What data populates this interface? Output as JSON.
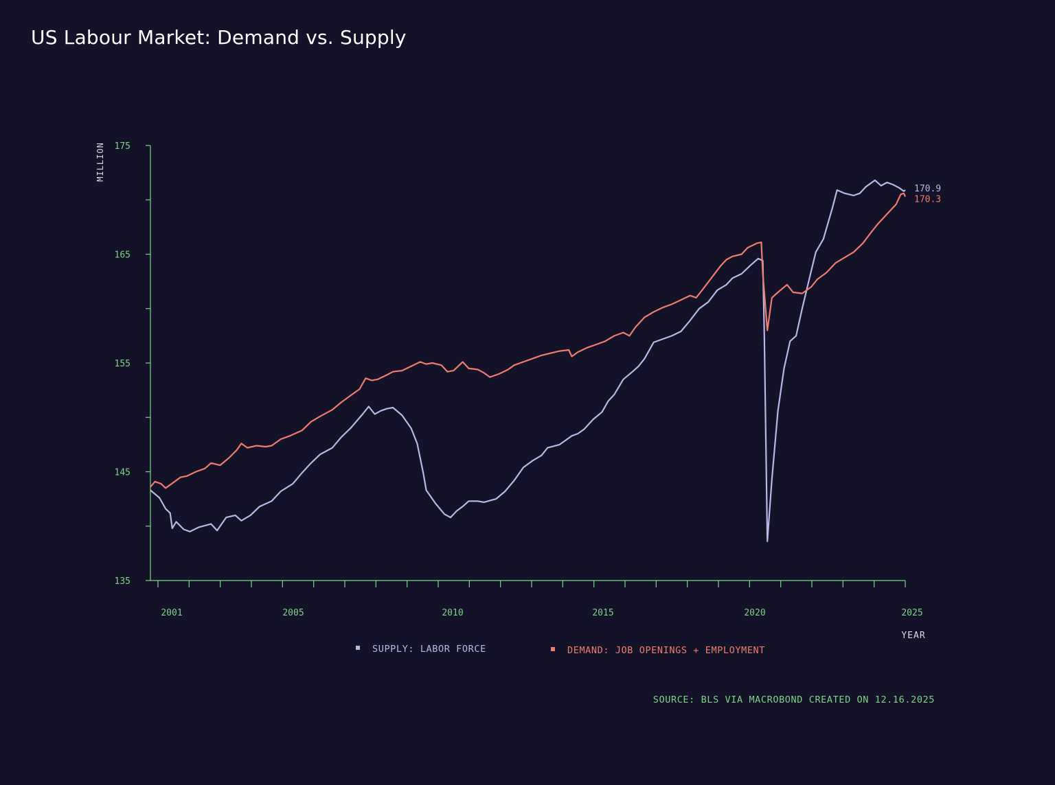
{
  "title": "US Labour Market: Demand vs. Supply",
  "source": "SOURCE: BLS VIA MACROBOND CREATED ON 12.16.2025",
  "colors": {
    "background": "#131228",
    "axis": "#7fd38a",
    "supply": "#b8b7e6",
    "demand": "#ee7d6e",
    "title": "#ffffff"
  },
  "chart_data": {
    "type": "line",
    "title": "US Labour Market: Demand vs. Supply",
    "ylabel": "MILLION",
    "xlabel": "YEAR",
    "ylim": [
      135,
      175
    ],
    "xlim": [
      2000.0,
      2024.9
    ],
    "y_ticks_labeled": [
      135,
      145,
      155,
      165,
      175
    ],
    "x_ticks_labeled": [
      "2001",
      "2005",
      "2010",
      "2015",
      "2020",
      "2025"
    ],
    "grid": false,
    "legend_position": "bottom-center",
    "series": [
      {
        "name": "SUPPLY: LABOR FORCE",
        "color": "#b8b7e6",
        "end_label": "170.9",
        "points": [
          [
            2000.0,
            143.3
          ],
          [
            2000.3,
            142.6
          ],
          [
            2000.5,
            141.6
          ],
          [
            2000.65,
            141.2
          ],
          [
            2000.72,
            139.8
          ],
          [
            2000.85,
            140.4
          ],
          [
            2001.1,
            139.7
          ],
          [
            2001.3,
            139.5
          ],
          [
            2001.6,
            139.9
          ],
          [
            2002.0,
            140.2
          ],
          [
            2002.2,
            139.6
          ],
          [
            2002.5,
            140.8
          ],
          [
            2002.8,
            141.0
          ],
          [
            2003.0,
            140.5
          ],
          [
            2003.3,
            141.0
          ],
          [
            2003.6,
            141.8
          ],
          [
            2004.0,
            142.3
          ],
          [
            2004.3,
            143.2
          ],
          [
            2004.7,
            143.9
          ],
          [
            2005.0,
            144.9
          ],
          [
            2005.3,
            145.8
          ],
          [
            2005.6,
            146.6
          ],
          [
            2006.0,
            147.2
          ],
          [
            2006.3,
            148.2
          ],
          [
            2006.6,
            149.0
          ],
          [
            2007.0,
            150.3
          ],
          [
            2007.2,
            151.0
          ],
          [
            2007.4,
            150.3
          ],
          [
            2007.6,
            150.6
          ],
          [
            2007.8,
            150.8
          ],
          [
            2008.0,
            150.9
          ],
          [
            2008.3,
            150.2
          ],
          [
            2008.6,
            149.0
          ],
          [
            2008.8,
            147.6
          ],
          [
            2009.0,
            144.9
          ],
          [
            2009.1,
            143.3
          ],
          [
            2009.4,
            142.1
          ],
          [
            2009.7,
            141.1
          ],
          [
            2009.9,
            140.8
          ],
          [
            2010.1,
            141.4
          ],
          [
            2010.3,
            141.8
          ],
          [
            2010.5,
            142.3
          ],
          [
            2010.8,
            142.3
          ],
          [
            2011.0,
            142.2
          ],
          [
            2011.4,
            142.5
          ],
          [
            2011.7,
            143.2
          ],
          [
            2012.0,
            144.2
          ],
          [
            2012.3,
            145.4
          ],
          [
            2012.6,
            146.0
          ],
          [
            2012.9,
            146.5
          ],
          [
            2013.1,
            147.2
          ],
          [
            2013.5,
            147.5
          ],
          [
            2013.9,
            148.3
          ],
          [
            2014.1,
            148.5
          ],
          [
            2014.3,
            148.9
          ],
          [
            2014.6,
            149.8
          ],
          [
            2014.9,
            150.5
          ],
          [
            2015.1,
            151.5
          ],
          [
            2015.3,
            152.1
          ],
          [
            2015.6,
            153.5
          ],
          [
            2015.9,
            154.2
          ],
          [
            2016.1,
            154.7
          ],
          [
            2016.3,
            155.4
          ],
          [
            2016.6,
            156.9
          ],
          [
            2016.9,
            157.2
          ],
          [
            2017.2,
            157.5
          ],
          [
            2017.5,
            157.9
          ],
          [
            2017.8,
            158.9
          ],
          [
            2018.1,
            160.0
          ],
          [
            2018.4,
            160.6
          ],
          [
            2018.7,
            161.7
          ],
          [
            2019.0,
            162.2
          ],
          [
            2019.2,
            162.8
          ],
          [
            2019.5,
            163.2
          ],
          [
            2019.8,
            164.0
          ],
          [
            2020.05,
            164.6
          ],
          [
            2020.2,
            164.4
          ],
          [
            2020.25,
            157.5
          ],
          [
            2020.35,
            138.6
          ],
          [
            2020.5,
            144.3
          ],
          [
            2020.7,
            150.6
          ],
          [
            2020.9,
            154.5
          ],
          [
            2021.1,
            157.0
          ],
          [
            2021.3,
            157.5
          ],
          [
            2021.5,
            160.0
          ],
          [
            2021.8,
            163.5
          ],
          [
            2021.95,
            165.2
          ],
          [
            2022.2,
            166.4
          ],
          [
            2022.5,
            169.3
          ],
          [
            2022.65,
            170.9
          ],
          [
            2022.9,
            170.6
          ],
          [
            2023.2,
            170.4
          ],
          [
            2023.4,
            170.6
          ],
          [
            2023.6,
            171.2
          ],
          [
            2023.9,
            171.8
          ],
          [
            2024.1,
            171.3
          ],
          [
            2024.3,
            171.6
          ],
          [
            2024.5,
            171.4
          ],
          [
            2024.7,
            171.1
          ],
          [
            2024.85,
            170.8
          ],
          [
            2024.9,
            170.9
          ]
        ]
      },
      {
        "name": "DEMAND: JOB OPENINGS + EMPLOYMENT",
        "color": "#ee7d6e",
        "end_label": "170.3",
        "points": [
          [
            2000.0,
            143.6
          ],
          [
            2000.15,
            144.1
          ],
          [
            2000.35,
            143.9
          ],
          [
            2000.5,
            143.5
          ],
          [
            2000.8,
            144.1
          ],
          [
            2001.0,
            144.5
          ],
          [
            2001.2,
            144.6
          ],
          [
            2001.5,
            145.0
          ],
          [
            2001.8,
            145.3
          ],
          [
            2002.0,
            145.8
          ],
          [
            2002.3,
            145.6
          ],
          [
            2002.6,
            146.3
          ],
          [
            2002.85,
            147.0
          ],
          [
            2003.0,
            147.6
          ],
          [
            2003.2,
            147.2
          ],
          [
            2003.5,
            147.4
          ],
          [
            2003.8,
            147.3
          ],
          [
            2004.0,
            147.4
          ],
          [
            2004.3,
            148.0
          ],
          [
            2004.6,
            148.3
          ],
          [
            2005.0,
            148.8
          ],
          [
            2005.3,
            149.6
          ],
          [
            2005.6,
            150.1
          ],
          [
            2006.0,
            150.7
          ],
          [
            2006.3,
            151.4
          ],
          [
            2006.6,
            152.0
          ],
          [
            2006.9,
            152.6
          ],
          [
            2007.1,
            153.6
          ],
          [
            2007.3,
            153.4
          ],
          [
            2007.5,
            153.5
          ],
          [
            2007.8,
            153.9
          ],
          [
            2008.0,
            154.2
          ],
          [
            2008.3,
            154.3
          ],
          [
            2008.6,
            154.7
          ],
          [
            2008.9,
            155.1
          ],
          [
            2009.1,
            154.9
          ],
          [
            2009.3,
            155.0
          ],
          [
            2009.6,
            154.8
          ],
          [
            2009.8,
            154.2
          ],
          [
            2010.0,
            154.3
          ],
          [
            2010.3,
            155.1
          ],
          [
            2010.5,
            154.5
          ],
          [
            2010.8,
            154.4
          ],
          [
            2011.0,
            154.1
          ],
          [
            2011.2,
            153.7
          ],
          [
            2011.5,
            154.0
          ],
          [
            2011.8,
            154.4
          ],
          [
            2012.0,
            154.8
          ],
          [
            2012.3,
            155.1
          ],
          [
            2012.6,
            155.4
          ],
          [
            2012.9,
            155.7
          ],
          [
            2013.2,
            155.9
          ],
          [
            2013.5,
            156.1
          ],
          [
            2013.8,
            156.2
          ],
          [
            2013.9,
            155.6
          ],
          [
            2014.1,
            156.0
          ],
          [
            2014.4,
            156.4
          ],
          [
            2014.7,
            156.7
          ],
          [
            2015.0,
            157.0
          ],
          [
            2015.3,
            157.5
          ],
          [
            2015.6,
            157.8
          ],
          [
            2015.8,
            157.5
          ],
          [
            2016.0,
            158.3
          ],
          [
            2016.3,
            159.2
          ],
          [
            2016.6,
            159.7
          ],
          [
            2016.9,
            160.1
          ],
          [
            2017.2,
            160.4
          ],
          [
            2017.5,
            160.8
          ],
          [
            2017.8,
            161.2
          ],
          [
            2018.0,
            161.0
          ],
          [
            2018.2,
            161.7
          ],
          [
            2018.5,
            162.8
          ],
          [
            2018.8,
            163.9
          ],
          [
            2019.0,
            164.5
          ],
          [
            2019.2,
            164.8
          ],
          [
            2019.5,
            165.0
          ],
          [
            2019.7,
            165.6
          ],
          [
            2020.0,
            166.0
          ],
          [
            2020.15,
            166.1
          ],
          [
            2020.2,
            163.2
          ],
          [
            2020.35,
            158.0
          ],
          [
            2020.5,
            161.0
          ],
          [
            2020.7,
            161.5
          ],
          [
            2021.0,
            162.2
          ],
          [
            2021.2,
            161.5
          ],
          [
            2021.5,
            161.4
          ],
          [
            2021.8,
            162.0
          ],
          [
            2022.0,
            162.7
          ],
          [
            2022.3,
            163.3
          ],
          [
            2022.6,
            164.2
          ],
          [
            2022.9,
            164.7
          ],
          [
            2023.2,
            165.2
          ],
          [
            2023.5,
            166.0
          ],
          [
            2023.8,
            167.1
          ],
          [
            2024.0,
            167.8
          ],
          [
            2024.2,
            168.4
          ],
          [
            2024.4,
            169.0
          ],
          [
            2024.6,
            169.6
          ],
          [
            2024.75,
            170.5
          ],
          [
            2024.85,
            170.6
          ],
          [
            2024.9,
            170.3
          ]
        ]
      }
    ]
  }
}
